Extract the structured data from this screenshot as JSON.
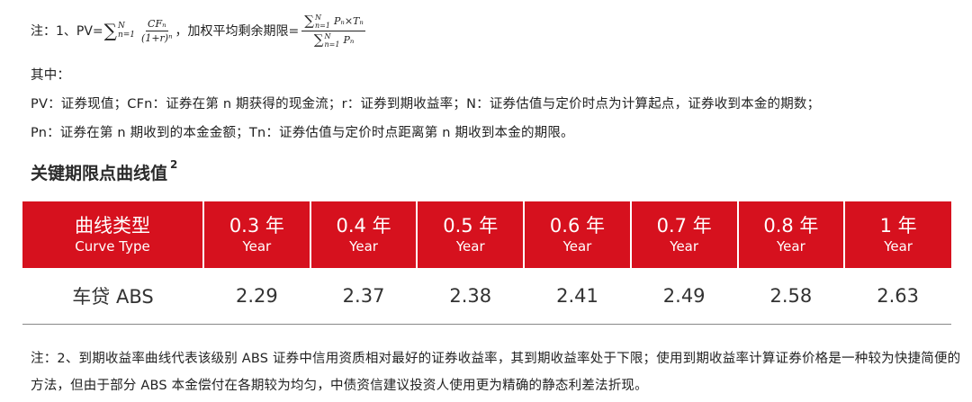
{
  "formula": {
    "prefix": "注：1、PV=",
    "sum_symbol": "∑",
    "sum_upper": "N",
    "sum_lower": "n=1",
    "pv_numerator": "CFₙ",
    "pv_denominator": "(1+r)ⁿ",
    "separator": "，加权平均剩余期限=",
    "wal_numerator": "Pₙ×Tₙ",
    "wal_denominator": "Pₙ"
  },
  "notes": {
    "line_among": "其中：",
    "line_definitions_1": "PV：证券现值；CFn：证券在第 n 期获得的现金流；r：证券到期收益率；N：证券估值与定价时点为计算起点，证券收到本金的期数；",
    "line_definitions_2": "Pn：证券在第 n 期收到的本金金额；Tn：证券估值与定价时点距离第 n 期收到本金的期限。"
  },
  "section": {
    "title": "关键期限点曲线值",
    "superscript": "2"
  },
  "table": {
    "header_first_zh": "曲线类型",
    "header_first_en": "Curve Type",
    "columns": [
      {
        "zh": "0.3 年",
        "en": "Year"
      },
      {
        "zh": "0.4 年",
        "en": "Year"
      },
      {
        "zh": "0.5 年",
        "en": "Year"
      },
      {
        "zh": "0.6 年",
        "en": "Year"
      },
      {
        "zh": "0.7 年",
        "en": "Year"
      },
      {
        "zh": "0.8 年",
        "en": "Year"
      },
      {
        "zh": "1 年",
        "en": "Year"
      }
    ],
    "row_label": "车贷 ABS",
    "values": [
      "2.29",
      "2.37",
      "2.38",
      "2.41",
      "2.49",
      "2.58",
      "2.63"
    ],
    "header_color": "#d6111e"
  },
  "footnote": "注：2、到期收益率曲线代表该级别 ABS 证券中信用资质相对最好的证券收益率，其到期收益率处于下限；使用到期收益率计算证券价格是一种较为快捷简便的方法，但由于部分 ABS 本金偿付在各期较为均匀，中债资信建议投资人使用更为精确的静态利差法折现。"
}
